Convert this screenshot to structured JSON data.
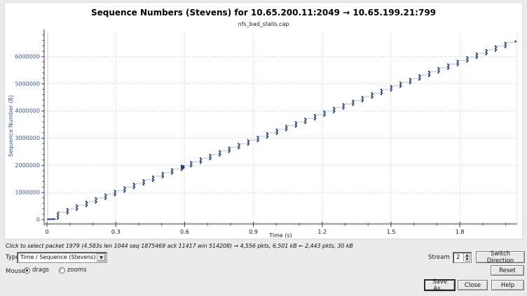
{
  "chart_data": {
    "type": "scatter",
    "title": "Sequence Numbers (Stevens) for 10.65.200.11:2049 → 10.65.199.21:799",
    "subtitle": "nfs_bad_stalls.cap",
    "xlabel": "Time (s)",
    "ylabel": "Sequence Number (B)",
    "xlim": [
      0,
      2.05
    ],
    "ylim": [
      0,
      6900000
    ],
    "x_major_ticks": [
      0,
      0.3,
      0.6,
      0.9,
      1.2,
      1.5,
      1.8
    ],
    "x_minor_step": 0.1,
    "y_major_ticks": [
      0,
      1000000,
      2000000,
      3000000,
      4000000,
      5000000,
      6000000
    ],
    "y_minor_step": 200000,
    "grid": "dotted-on-major-ticks",
    "legend": "none",
    "lead_in_points": [
      [
        0.004,
        18000
      ],
      [
        0.01,
        20000
      ],
      [
        0.016,
        18000
      ],
      [
        0.022,
        22000
      ],
      [
        0.028,
        20000
      ],
      [
        0.034,
        24000
      ]
    ],
    "clusters_note": "each cluster = burst of data packets plotted as vertical run [time_s, seq_from_B, seq_to_B]",
    "clusters": [
      [
        0.048,
        30000,
        270000
      ],
      [
        0.09,
        223000,
        403000
      ],
      [
        0.131,
        356000,
        536000
      ],
      [
        0.173,
        489000,
        669000
      ],
      [
        0.214,
        622000,
        802000
      ],
      [
        0.256,
        755000,
        935000
      ],
      [
        0.297,
        888000,
        1068000
      ],
      [
        0.339,
        1021000,
        1201000
      ],
      [
        0.38,
        1154000,
        1334000
      ],
      [
        0.422,
        1287000,
        1467000
      ],
      [
        0.463,
        1420000,
        1600000
      ],
      [
        0.505,
        1553000,
        1733000
      ],
      [
        0.546,
        1686000,
        1866000
      ],
      [
        0.588,
        1819000,
        1999000
      ],
      [
        0.629,
        1952000,
        2132000
      ],
      [
        0.671,
        2085000,
        2265000
      ],
      [
        0.712,
        2218000,
        2398000
      ],
      [
        0.754,
        2351000,
        2531000
      ],
      [
        0.795,
        2484000,
        2664000
      ],
      [
        0.837,
        2617000,
        2797000
      ],
      [
        0.878,
        2750000,
        2930000
      ],
      [
        0.92,
        2883000,
        3063000
      ],
      [
        0.961,
        3016000,
        3196000
      ],
      [
        1.003,
        3149000,
        3329000
      ],
      [
        1.044,
        3282000,
        3462000
      ],
      [
        1.086,
        3415000,
        3595000
      ],
      [
        1.127,
        3548000,
        3728000
      ],
      [
        1.169,
        3681000,
        3861000
      ],
      [
        1.21,
        3814000,
        3994000
      ],
      [
        1.252,
        3947000,
        4127000
      ],
      [
        1.293,
        4080000,
        4260000
      ],
      [
        1.335,
        4213000,
        4393000
      ],
      [
        1.376,
        4346000,
        4526000
      ],
      [
        1.418,
        4479000,
        4659000
      ],
      [
        1.459,
        4612000,
        4792000
      ],
      [
        1.501,
        4745000,
        4925000
      ],
      [
        1.542,
        4878000,
        5058000
      ],
      [
        1.584,
        5011000,
        5191000
      ],
      [
        1.625,
        5144000,
        5324000
      ],
      [
        1.667,
        5277000,
        5457000
      ],
      [
        1.708,
        5410000,
        5590000
      ],
      [
        1.75,
        5543000,
        5723000
      ],
      [
        1.791,
        5676000,
        5856000
      ],
      [
        1.833,
        5809000,
        5989000
      ],
      [
        1.874,
        5942000,
        6122000
      ],
      [
        1.916,
        6075000,
        6255000
      ],
      [
        1.957,
        6208000,
        6388000
      ],
      [
        1.999,
        6341000,
        6521000
      ]
    ],
    "tail_point": [
      2.043,
      6560000
    ],
    "highlight_point": {
      "t": 0.592,
      "seq": 1935000
    },
    "colors": {
      "point": "#1e3a6e",
      "connector": "#b8c4d9",
      "grid": "#c9c9c9",
      "zero_gridline": "#e6e6e6",
      "y_axis": "#3f3f3f",
      "x_axis_bar": "#a3a3a3",
      "tick": "#3f3f3f",
      "y_tick_label": "#3c568c",
      "x_tick_label": "#1a1a1a"
    }
  },
  "status_line": "Click to select packet 1979 (4.583s len 1044 seq 1875469 ack 11417 win 514208) → 4,556 pkts, 6,501 kB ← 2,443 pkts, 30 kB",
  "controls": {
    "type_label": "Type",
    "type_value": "Time / Sequence (Stevens)",
    "combo_arrow": "▼",
    "stream_label": "Stream",
    "stream_value": "2",
    "spin_up": "▲",
    "spin_down": "▼",
    "switch_direction_label": "Switch Direction",
    "mouse_label": "Mouse",
    "mouse_options": [
      {
        "label": "drags",
        "selected": true
      },
      {
        "label": "zooms",
        "selected": false
      }
    ],
    "reset_label": "Reset",
    "save_as_label": "Save As...",
    "close_label": "Close",
    "help_label": "Help"
  }
}
